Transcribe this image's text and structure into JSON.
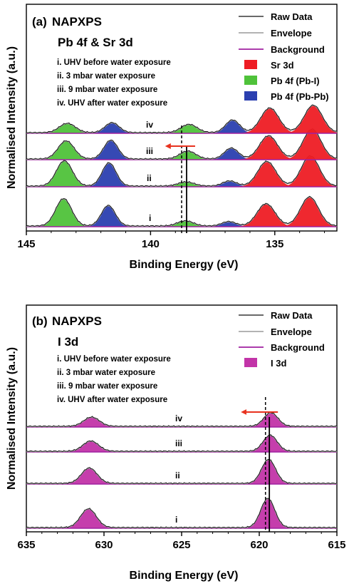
{
  "colors": {
    "raw": "#111111",
    "envelope": "#9a9a9a",
    "background": "#a020a0",
    "sr3d": "#ee1c24",
    "pbi": "#4fc23a",
    "pbpb": "#2b3fb0",
    "i3d": "#c234a8",
    "arrow": "#e8321f"
  },
  "chart_data": [
    {
      "type": "area",
      "panel": "(a)",
      "title": "NAPXPS",
      "subtitle": "Pb 4f & Sr 3d",
      "xlabel": "Binding Energy (eV)",
      "ylabel": "Normalised Intensity (a.u.)",
      "xlim": [
        145,
        132.5
      ],
      "x_reversed": true,
      "xticks": [
        145,
        140,
        135
      ],
      "conditions": [
        "i. UHV before water exposure",
        "ii. 3 mbar water exposure",
        "iii. 9 mbar water exposure",
        "iv. UHV after water exposure"
      ],
      "trace_labels": [
        "i",
        "ii",
        "iii",
        "iv"
      ],
      "legend": [
        "Raw Data",
        "Envelope",
        "Background",
        "Sr 3d",
        "Pb 4f (Pb-I)",
        "Pb 4f (Pb-Pb)"
      ],
      "legend_position": "top-right",
      "ref_lines": {
        "solid": 138.55,
        "dashed": 138.75
      },
      "arrow": {
        "from": 138.55,
        "to": 139.3,
        "trace": "iii"
      },
      "components": [
        {
          "name": "Pb 4f (Pb-I)",
          "color": "pbi",
          "centers": [
            143.5,
            138.6
          ],
          "widths": [
            0.32,
            0.32
          ]
        },
        {
          "name": "Pb 4f (Pb-Pb)",
          "color": "pbpb",
          "centers": [
            141.7,
            136.85
          ],
          "widths": [
            0.28,
            0.28
          ]
        },
        {
          "name": "Sr 3d",
          "color": "sr3d",
          "centers": [
            135.35,
            133.6
          ],
          "widths": [
            0.36,
            0.36
          ]
        }
      ],
      "series": [
        {
          "label": "i",
          "center_shift": 0.0,
          "amplitudes": [
            0.8,
            0.15,
            0.6,
            0.13,
            0.65,
            0.85
          ]
        },
        {
          "label": "ii",
          "center_shift": 0.03,
          "amplitudes": [
            0.74,
            0.12,
            0.68,
            0.15,
            0.72,
            0.88
          ]
        },
        {
          "label": "iii",
          "center_shift": 0.1,
          "amplitudes": [
            0.53,
            0.23,
            0.55,
            0.32,
            0.68,
            0.87
          ]
        },
        {
          "label": "iv",
          "center_shift": 0.15,
          "amplitudes": [
            0.27,
            0.24,
            0.29,
            0.37,
            0.72,
            0.8
          ]
        }
      ]
    },
    {
      "type": "area",
      "panel": "(b)",
      "title": "NAPXPS",
      "subtitle": "I 3d",
      "xlabel": "Binding Energy (eV)",
      "ylabel": "Normalised Intensity (a.u.)",
      "xlim": [
        635,
        615
      ],
      "x_reversed": true,
      "xticks": [
        635,
        630,
        625,
        620,
        615
      ],
      "conditions": [
        "i. UHV before water exposure",
        "ii. 3 mbar water exposure",
        "iii. 9 mbar water exposure",
        "iv. UHV after water exposure"
      ],
      "trace_labels": [
        "i",
        "ii",
        "iii",
        "iv"
      ],
      "legend": [
        "Raw Data",
        "Envelope",
        "Background",
        "I 3d"
      ],
      "legend_position": "top-right",
      "ref_lines": {
        "solid": 619.35,
        "dashed": 619.6
      },
      "arrow": {
        "from": 619.35,
        "to": 621.0,
        "trace": "iv"
      },
      "components": [
        {
          "name": "I 3d",
          "color": "i3d",
          "centers": [
            631.0,
            619.45
          ],
          "widths": [
            0.5,
            0.45
          ]
        }
      ],
      "series": [
        {
          "label": "i",
          "center_shift": 0.0,
          "amplitudes": [
            0.55,
            0.85
          ]
        },
        {
          "label": "ii",
          "center_shift": 0.05,
          "amplitudes": [
            0.45,
            0.7
          ]
        },
        {
          "label": "iii",
          "center_shift": 0.15,
          "amplitudes": [
            0.3,
            0.47
          ]
        },
        {
          "label": "iv",
          "center_shift": 0.2,
          "amplitudes": [
            0.27,
            0.4
          ]
        }
      ]
    }
  ]
}
